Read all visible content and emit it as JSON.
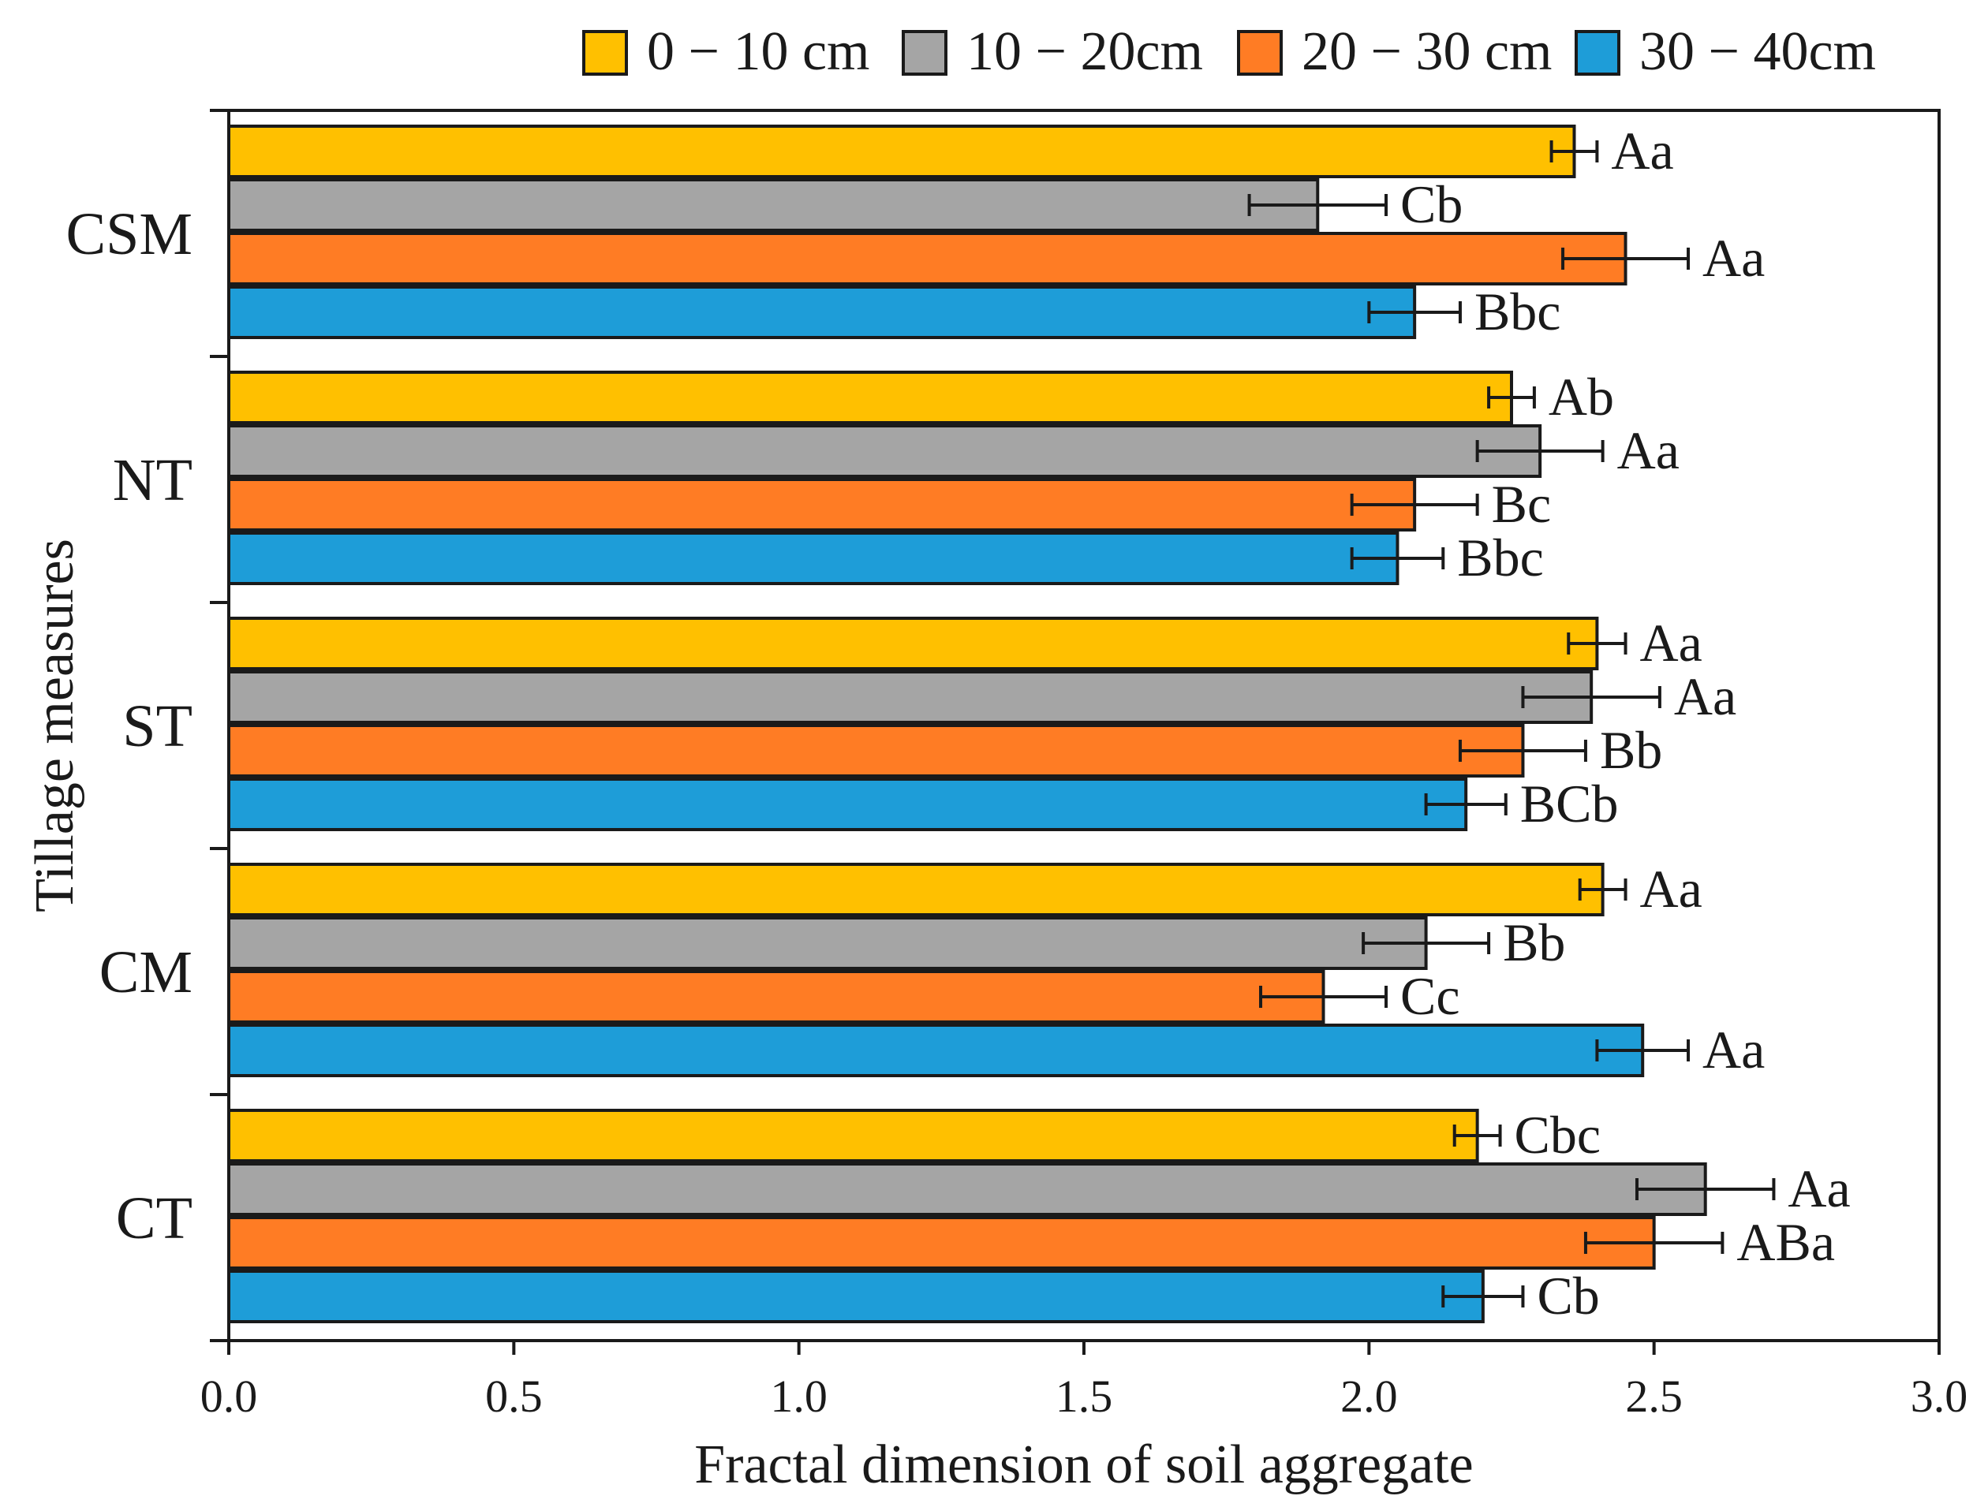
{
  "chart_data": {
    "type": "bar",
    "orientation": "horizontal",
    "title": "",
    "xlabel": "Fractal dimension of soil aggregate",
    "ylabel": "Tillage measures",
    "xlim": [
      0,
      3.0
    ],
    "xticks": [
      "0.0",
      "0.5",
      "1.0",
      "1.5",
      "2.0",
      "2.5",
      "3.0"
    ],
    "legend_position": "top",
    "categories": [
      "CSM",
      "NT",
      "ST",
      "CM",
      "CT"
    ],
    "series": [
      {
        "name": "0 − 10 cm",
        "color": "#FFC000",
        "values": [
          2.36,
          2.25,
          2.4,
          2.41,
          2.19
        ],
        "errors": [
          0.04,
          0.04,
          0.05,
          0.04,
          0.04
        ],
        "labels": [
          "Aa",
          "Ab",
          "Aa",
          "Aa",
          "Cbc"
        ]
      },
      {
        "name": "10 − 20cm",
        "color": "#A5A5A5",
        "values": [
          1.91,
          2.3,
          2.39,
          2.1,
          2.59
        ],
        "errors": [
          0.12,
          0.11,
          0.12,
          0.11,
          0.12
        ],
        "labels": [
          "Cb",
          "Aa",
          "Aa",
          "Bb",
          "Aa"
        ]
      },
      {
        "name": "20 − 30 cm",
        "color": "#FF7C24",
        "values": [
          2.45,
          2.08,
          2.27,
          1.92,
          2.5
        ],
        "errors": [
          0.11,
          0.11,
          0.11,
          0.11,
          0.12
        ],
        "labels": [
          "Aa",
          "Bc",
          "Bb",
          "Cc",
          "ABa"
        ]
      },
      {
        "name": "30 − 40cm",
        "color": "#1E9DD8",
        "values": [
          2.08,
          2.05,
          2.17,
          2.48,
          2.2
        ],
        "errors": [
          0.08,
          0.08,
          0.07,
          0.08,
          0.07
        ],
        "labels": [
          "Bbc",
          "Bbc",
          "BCb",
          "Aa",
          "Cb"
        ]
      }
    ]
  }
}
